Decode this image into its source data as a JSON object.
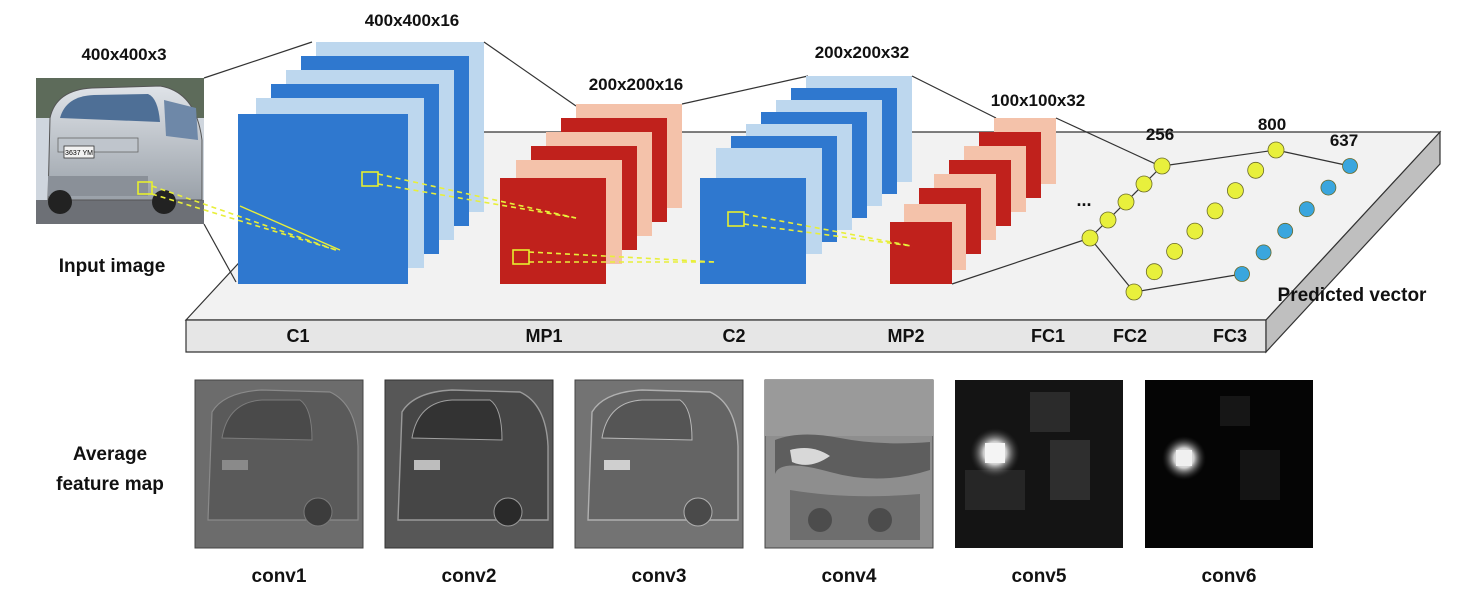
{
  "input": {
    "caption": "Input image",
    "size": "400x400x3",
    "plate_text": "3637 YM"
  },
  "layers": {
    "c1": {
      "name": "C1",
      "size": "400x400x16"
    },
    "mp1": {
      "name": "MP1",
      "size": "200x200x16"
    },
    "c2": {
      "name": "C2",
      "size": "200x200x32"
    },
    "mp2": {
      "name": "MP2",
      "size": "100x100x32"
    },
    "fc1": {
      "name": "FC1",
      "dots": "..."
    },
    "fc2": {
      "name": "FC2",
      "units": "256"
    },
    "fc3": {
      "name": "FC3",
      "units": "800"
    },
    "out": {
      "units": "637",
      "caption": "Predicted vector"
    }
  },
  "feature_maps": {
    "row_label_line1": "Average",
    "row_label_line2": "feature map",
    "items": [
      "conv1",
      "conv2",
      "conv3",
      "conv4",
      "conv5",
      "conv6"
    ]
  },
  "colors": {
    "conv_blue": "#2F78CF",
    "conv_light": "#BDD7EE",
    "pool_red": "#C0211C",
    "pool_light": "#F4C2AA",
    "fc_yellow": "#E8F03C",
    "out_blue": "#3AA6DE",
    "platform": "#F2F2F2"
  }
}
